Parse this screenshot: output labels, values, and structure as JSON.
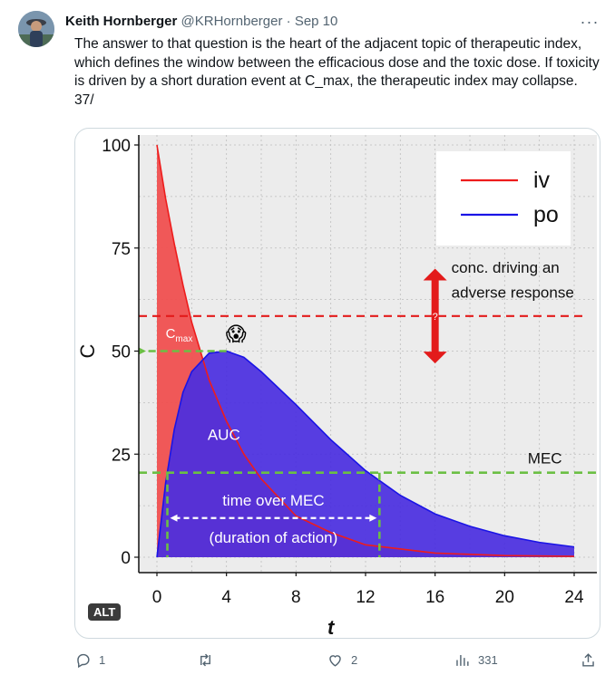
{
  "tweet": {
    "author_name": "Keith Hornberger",
    "author_handle": "@KRHornberger",
    "separator": "·",
    "date": "Sep 10",
    "more_label": "···",
    "text": "The answer to that question is the heart of the adjacent topic of therapeutic index, which defines the window between the efficacious dose and the toxic dose. If toxicity is driven by a short duration event at C_max, the therapeutic index may collapse. 37/"
  },
  "media": {
    "alt_badge": "ALT"
  },
  "actions": {
    "replies": "1",
    "retweets": "",
    "likes": "2",
    "views": "331"
  },
  "chart_data": {
    "type": "area",
    "xlabel": "t",
    "ylabel": "C",
    "xlim": [
      0,
      24
    ],
    "ylim": [
      0,
      100
    ],
    "x_ticks": [
      "0",
      "4",
      "8",
      "12",
      "16",
      "20",
      "24"
    ],
    "y_ticks": [
      "0",
      "25",
      "50",
      "75",
      "100"
    ],
    "grid": true,
    "legend_position": "top-right",
    "series": [
      {
        "name": "iv",
        "color": "#ee1c1c",
        "fill": "#f05050",
        "x": [
          0,
          0.5,
          1,
          1.5,
          2,
          2.5,
          3,
          3.5,
          4,
          5,
          6,
          8,
          10,
          12,
          16,
          20,
          24
        ],
        "y": [
          100,
          87,
          76,
          66,
          57,
          50,
          43,
          38,
          33,
          25,
          19,
          10,
          6,
          3,
          1,
          0.4,
          0.2
        ]
      },
      {
        "name": "po",
        "color": "#1a14e6",
        "fill": "#4a2ee0",
        "x": [
          0,
          0.5,
          1,
          1.5,
          2,
          3,
          4,
          5,
          6,
          8,
          10,
          12,
          14,
          16,
          18,
          20,
          22,
          24
        ],
        "y": [
          0,
          18,
          31,
          40,
          45,
          49.5,
          50,
          48.5,
          45,
          37,
          28.5,
          21,
          15,
          10.5,
          7.5,
          5.2,
          3.6,
          2.5
        ]
      }
    ],
    "annotations": {
      "adverse_label_line1": "conc. driving an",
      "adverse_label_line2": "adverse response",
      "adverse_level": 58.5,
      "question_mark": "?",
      "mec_label": "MEC",
      "mec_level": 20.5,
      "cmax_label": "C",
      "cmax_sub": "max",
      "cmax_level": 50,
      "auc_label": "AUC",
      "tmec_line1": "time over MEC",
      "tmec_line2": "(duration of action)",
      "tmec_start": 0.6,
      "tmec_end": 12.8,
      "emoji": "😱"
    }
  }
}
